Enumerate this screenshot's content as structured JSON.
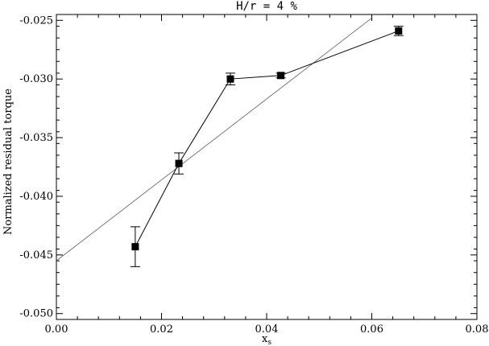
{
  "chart_data": {
    "type": "scatter",
    "title": "H/r = 4 %",
    "xlabel": "x",
    "xlabel_sub": "s",
    "ylabel": "Normalized residual torque",
    "xlim": [
      0.0,
      0.08
    ],
    "ylim": [
      -0.0505,
      -0.0245
    ],
    "x_ticks": [
      0.0,
      0.02,
      0.04,
      0.06,
      0.08
    ],
    "x_tick_labels": [
      "0.00",
      "0.02",
      "0.04",
      "0.06",
      "0.08"
    ],
    "y_ticks": [
      -0.05,
      -0.045,
      -0.04,
      -0.035,
      -0.03,
      -0.025
    ],
    "y_tick_labels": [
      "-0.050",
      "-0.045",
      "-0.040",
      "-0.035",
      "-0.030",
      "-0.025"
    ],
    "grid": false,
    "series": [
      {
        "style": "line-with-square-markers-and-error-bars",
        "x": [
          0.015,
          0.0233,
          0.0331,
          0.0427,
          0.0651
        ],
        "y": [
          -0.0443,
          -0.0372,
          -0.03,
          -0.0297,
          -0.0259
        ],
        "err": [
          0.0017,
          0.0009,
          0.0005,
          0.0002,
          0.0004
        ]
      },
      {
        "style": "straight-line-fit",
        "x": [
          0.0,
          0.06
        ],
        "y": [
          -0.0455,
          -0.0248
        ]
      }
    ]
  }
}
